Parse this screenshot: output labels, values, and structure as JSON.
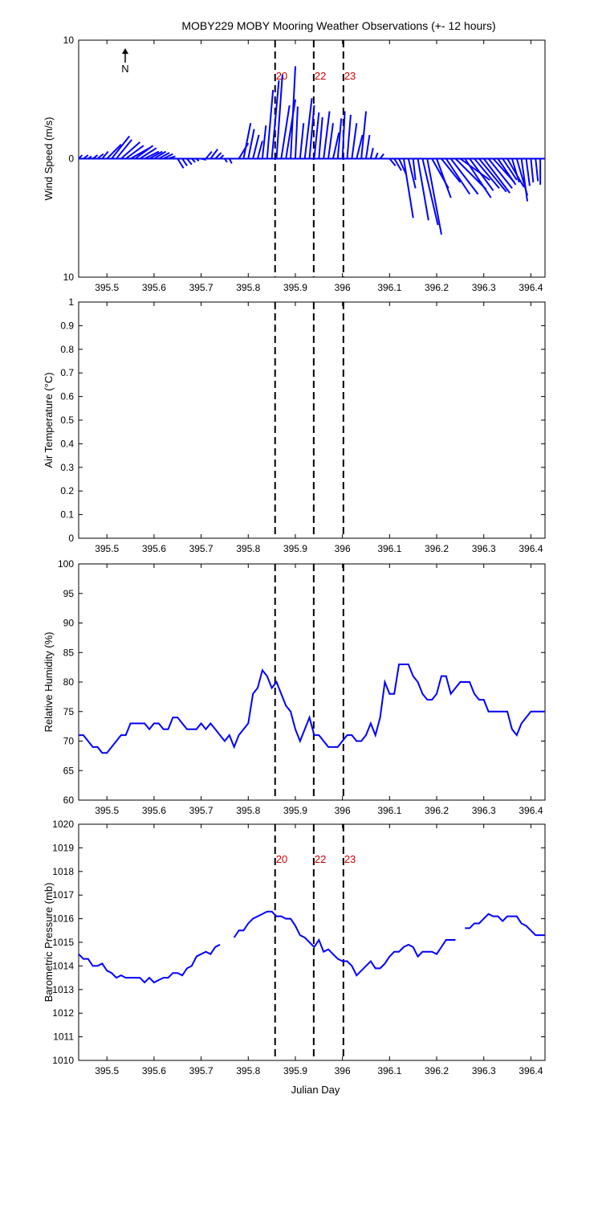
{
  "title": "MOBY229 MOBY Mooring Weather Observations (+- 12 hours)",
  "north_label": "N",
  "xlabel": "Julian Day",
  "xlim": [
    395.44,
    396.43
  ],
  "xticks": [
    "395.5",
    "395.6",
    "395.7",
    "395.8",
    "395.9",
    "396",
    "396.1",
    "396.2",
    "396.3",
    "396.4"
  ],
  "xtick_values": [
    395.5,
    395.6,
    395.7,
    395.8,
    395.9,
    396.0,
    396.1,
    396.2,
    396.3,
    396.4
  ],
  "markers": [
    {
      "label": "20",
      "x": 395.857
    },
    {
      "label": "22",
      "x": 395.939
    },
    {
      "label": "23",
      "x": 396.002
    }
  ],
  "colors": {
    "series": "#0000ff",
    "marker_text": "#cc0000",
    "axes": "#000000"
  },
  "chart_data": [
    {
      "type": "quiver",
      "panel": "wind",
      "ylabel": "Wind Speed (m/s)",
      "ylim": [
        -10,
        10
      ],
      "yticks": [
        "10",
        "0",
        "10"
      ],
      "ytick_values": [
        10,
        0,
        -10
      ],
      "show_markers_labels": true,
      "series": [
        {
          "name": "",
          "x": [
            395.44,
            395.45,
            395.46,
            395.47,
            395.48,
            395.49,
            395.5,
            395.51,
            395.52,
            395.53,
            395.54,
            395.55,
            395.56,
            395.57,
            395.58,
            395.59,
            395.6,
            395.61,
            395.62,
            395.63,
            395.64,
            395.65,
            395.66,
            395.67,
            395.68,
            395.69,
            395.7,
            395.71,
            395.72,
            395.73,
            395.74,
            395.75,
            395.76,
            395.77,
            395.78,
            395.79,
            395.8,
            395.81,
            395.82,
            395.83,
            395.84,
            395.85,
            395.86,
            395.87,
            395.88,
            395.89,
            395.9,
            395.91,
            395.92,
            395.93,
            395.94,
            395.95,
            395.96,
            395.97,
            395.98,
            395.99,
            396.0,
            396.01,
            396.02,
            396.03,
            396.04,
            396.05,
            396.06,
            396.07,
            396.08,
            396.09,
            396.1,
            396.11,
            396.12,
            396.13,
            396.14,
            396.15,
            396.16,
            396.17,
            396.18,
            396.19,
            396.2,
            396.21,
            396.22,
            396.23,
            396.24,
            396.25,
            396.26,
            396.27,
            396.28,
            396.29,
            396.3,
            396.31,
            396.32,
            396.33,
            396.34,
            396.35,
            396.36,
            396.37,
            396.38,
            396.39,
            396.4,
            396.41,
            396.42
          ],
          "u": [
            0.3,
            0.4,
            0.3,
            0.4,
            0.5,
            0.5,
            1.2,
            1.5,
            1.3,
            1.6,
            1.5,
            1.6,
            1.5,
            1.4,
            1.2,
            1.1,
            1.0,
            0.9,
            0.8,
            0.6,
            0.6,
            0.5,
            0.4,
            0.4,
            0.3,
            0.2,
            0.4,
            0.5,
            0.6,
            0.5,
            0.3,
            0.2,
            0.2,
            1.0,
            0.8,
            0.6,
            0.5,
            0.5,
            0.4,
            0.3,
            0.5,
            0.6,
            0.5,
            0.7,
            0.8,
            0.4,
            0.2,
            0.3,
            0.6,
            0.4,
            0.4,
            0.3,
            0.5,
            0.4,
            0.5,
            0.3,
            0.2,
            0.3,
            0.4,
            0.5,
            0.4,
            0.3,
            0.2,
            0.2,
            0.3,
            0.1,
            0.5,
            0.6,
            0.6,
            0.8,
            0.6,
            0.2,
            0.9,
            1.3,
            1.2,
            1.4,
            1.2,
            1.6,
            2.0,
            2.3,
            2.6,
            2.5,
            2.2,
            2.0,
            2.1,
            2.3,
            2.2,
            2.0,
            1.8,
            1.5,
            1.2,
            1.4,
            0.6,
            0.9,
            0.5,
            0.3,
            0.2,
            0.2,
            0.0
          ],
          "v": [
            0.3,
            0.3,
            0.2,
            0.3,
            0.4,
            0.6,
            1.2,
            1.9,
            1.6,
            1.4,
            1.1,
            0.9,
            1.1,
            0.9,
            0.6,
            0.6,
            0.6,
            0.5,
            0.4,
            0.2,
            0.0,
            -0.8,
            -0.6,
            -0.5,
            -0.3,
            -0.2,
            -0.1,
            0.6,
            0.8,
            0.5,
            0.3,
            -0.3,
            -0.4,
            0.0,
            1.3,
            3.0,
            2.5,
            2.0,
            1.5,
            2.8,
            5.8,
            6.6,
            7.1,
            4.5,
            5.0,
            7.8,
            4.4,
            3.0,
            5.1,
            4.5,
            3.9,
            3.5,
            4.0,
            3.0,
            2.2,
            3.4,
            4.0,
            3.7,
            3.0,
            2.0,
            4.0,
            2.0,
            0.9,
            0.5,
            0.4,
            0.0,
            -0.6,
            -1.0,
            -1.3,
            -5.0,
            -2.5,
            -1.8,
            -5.2,
            -5.6,
            -6.4,
            -2.5,
            -3.3,
            -2.0,
            -3.0,
            -3.0,
            -2.6,
            -1.8,
            -3.3,
            -2.7,
            -2.5,
            -2.8,
            -2.9,
            -2.5,
            -2.0,
            -2.2,
            -1.8,
            -2.4,
            -2.0,
            -3.1,
            -3.6,
            -2.3,
            -2.0,
            -1.9,
            -2.2
          ]
        }
      ]
    },
    {
      "type": "line",
      "panel": "air_temperature",
      "ylabel": "Air Temperature (°C)",
      "ylim": [
        0,
        1
      ],
      "yticks": [
        "0",
        "0.1",
        "0.2",
        "0.3",
        "0.4",
        "0.5",
        "0.6",
        "0.7",
        "0.8",
        "0.9",
        "1"
      ],
      "ytick_values": [
        0,
        0.1,
        0.2,
        0.3,
        0.4,
        0.5,
        0.6,
        0.7,
        0.8,
        0.9,
        1
      ],
      "show_markers_labels": false,
      "series": []
    },
    {
      "type": "line",
      "panel": "relative_humidity",
      "ylabel": "Relative Humidity (%)",
      "ylim": [
        60,
        100
      ],
      "yticks": [
        "60",
        "65",
        "70",
        "75",
        "80",
        "85",
        "90",
        "95",
        "100"
      ],
      "ytick_values": [
        60,
        65,
        70,
        75,
        80,
        85,
        90,
        95,
        100
      ],
      "show_markers_labels": false,
      "series": [
        {
          "name": "",
          "x": [
            395.44,
            395.45,
            395.46,
            395.47,
            395.48,
            395.49,
            395.5,
            395.51,
            395.52,
            395.53,
            395.54,
            395.55,
            395.56,
            395.57,
            395.58,
            395.59,
            395.6,
            395.61,
            395.62,
            395.63,
            395.64,
            395.65,
            395.66,
            395.67,
            395.68,
            395.69,
            395.7,
            395.71,
            395.72,
            395.73,
            395.74,
            395.75,
            395.76,
            395.77,
            395.78,
            395.79,
            395.8,
            395.81,
            395.82,
            395.83,
            395.84,
            395.85,
            395.86,
            395.87,
            395.88,
            395.89,
            395.9,
            395.91,
            395.92,
            395.93,
            395.94,
            395.95,
            395.96,
            395.97,
            395.98,
            395.99,
            396.0,
            396.01,
            396.02,
            396.03,
            396.04,
            396.05,
            396.06,
            396.07,
            396.08,
            396.09,
            396.1,
            396.11,
            396.12,
            396.13,
            396.14,
            396.15,
            396.16,
            396.17,
            396.18,
            396.19,
            396.2,
            396.21,
            396.22,
            396.23,
            396.24,
            396.25,
            396.26,
            396.27,
            396.28,
            396.29,
            396.3,
            396.31,
            396.32,
            396.33,
            396.34,
            396.35,
            396.36,
            396.37,
            396.38,
            396.39,
            396.4,
            396.41,
            396.42,
            396.43
          ],
          "y": [
            71,
            71,
            70,
            69,
            69,
            68,
            68,
            69,
            70,
            71,
            71,
            73,
            73,
            73,
            73,
            72,
            73,
            73,
            72,
            72,
            74,
            74,
            73,
            72,
            72,
            72,
            73,
            72,
            73,
            72,
            71,
            70,
            71,
            69,
            71,
            72,
            73,
            78,
            79,
            82,
            81,
            79,
            80,
            78,
            76,
            75,
            72,
            70,
            72,
            74,
            71,
            71,
            70,
            69,
            69,
            69,
            70,
            71,
            71,
            70,
            70,
            71,
            73,
            71,
            74,
            80,
            78,
            78,
            83,
            83,
            83,
            81,
            80,
            78,
            77,
            77,
            78,
            81,
            81,
            78,
            79,
            80,
            80,
            80,
            78,
            77,
            77,
            75,
            75,
            75,
            75,
            75,
            72,
            71,
            73,
            74,
            75,
            75,
            75,
            75
          ]
        }
      ]
    },
    {
      "type": "line",
      "panel": "barometric_pressure",
      "ylabel": "Barometric Pressure (mb)",
      "ylim": [
        1010,
        1020
      ],
      "yticks": [
        "1010",
        "1011",
        "1012",
        "1013",
        "1014",
        "1015",
        "1016",
        "1017",
        "1018",
        "1019",
        "1020"
      ],
      "ytick_values": [
        1010,
        1011,
        1012,
        1013,
        1014,
        1015,
        1016,
        1017,
        1018,
        1019,
        1020
      ],
      "show_markers_labels": true,
      "series": [
        {
          "name": "",
          "segments": [
            {
              "x": [
                395.44,
                395.45,
                395.46,
                395.47,
                395.48,
                395.49,
                395.5,
                395.51,
                395.52,
                395.53,
                395.54,
                395.55,
                395.56,
                395.57,
                395.58,
                395.59,
                395.6,
                395.61,
                395.62,
                395.63,
                395.64,
                395.65,
                395.66,
                395.67,
                395.68,
                395.69,
                395.7,
                395.71,
                395.72,
                395.73,
                395.74
              ],
              "y": [
                1014.5,
                1014.3,
                1014.3,
                1014.0,
                1014.0,
                1014.1,
                1013.8,
                1013.7,
                1013.5,
                1013.6,
                1013.5,
                1013.5,
                1013.5,
                1013.5,
                1013.3,
                1013.5,
                1013.3,
                1013.4,
                1013.5,
                1013.5,
                1013.7,
                1013.7,
                1013.6,
                1013.9,
                1014.0,
                1014.4,
                1014.5,
                1014.6,
                1014.5,
                1014.8,
                1014.9
              ]
            },
            {
              "x": [
                395.77,
                395.78,
                395.79,
                395.8,
                395.81,
                395.82,
                395.83,
                395.84,
                395.85,
                395.86,
                395.87,
                395.88,
                395.89,
                395.9,
                395.91,
                395.92,
                395.93,
                395.94,
                395.95,
                395.96,
                395.97,
                395.98,
                395.99,
                396.0,
                396.01,
                396.02,
                396.03,
                396.04,
                396.05,
                396.06,
                396.07,
                396.08,
                396.09,
                396.1,
                396.11,
                396.12,
                396.13,
                396.14,
                396.15,
                396.16,
                396.17,
                396.18,
                396.19,
                396.2,
                396.21,
                396.22,
                396.23,
                396.24
              ],
              "y": [
                1015.2,
                1015.5,
                1015.5,
                1015.8,
                1016.0,
                1016.1,
                1016.2,
                1016.3,
                1016.3,
                1016.1,
                1016.1,
                1016.0,
                1016.0,
                1015.7,
                1015.3,
                1015.2,
                1015.0,
                1014.8,
                1015.1,
                1014.6,
                1014.7,
                1014.5,
                1014.3,
                1014.2,
                1014.2,
                1014.0,
                1013.6,
                1013.8,
                1014.0,
                1014.2,
                1013.9,
                1013.9,
                1014.1,
                1014.4,
                1014.6,
                1014.6,
                1014.8,
                1014.9,
                1014.8,
                1014.4,
                1014.6,
                1014.6,
                1014.6,
                1014.5,
                1014.8,
                1015.1,
                1015.1,
                1015.1
              ]
            },
            {
              "x": [
                396.26,
                396.27,
                396.28,
                396.29,
                396.3,
                396.31,
                396.32,
                396.33,
                396.34,
                396.35,
                396.36,
                396.37,
                396.38,
                396.39,
                396.4,
                396.41,
                396.42,
                396.43
              ],
              "y": [
                1015.6,
                1015.6,
                1015.8,
                1015.8,
                1016.0,
                1016.2,
                1016.1,
                1016.1,
                1015.9,
                1016.1,
                1016.1,
                1016.1,
                1015.8,
                1015.7,
                1015.5,
                1015.3,
                1015.3,
                1015.3
              ]
            }
          ]
        }
      ]
    }
  ]
}
